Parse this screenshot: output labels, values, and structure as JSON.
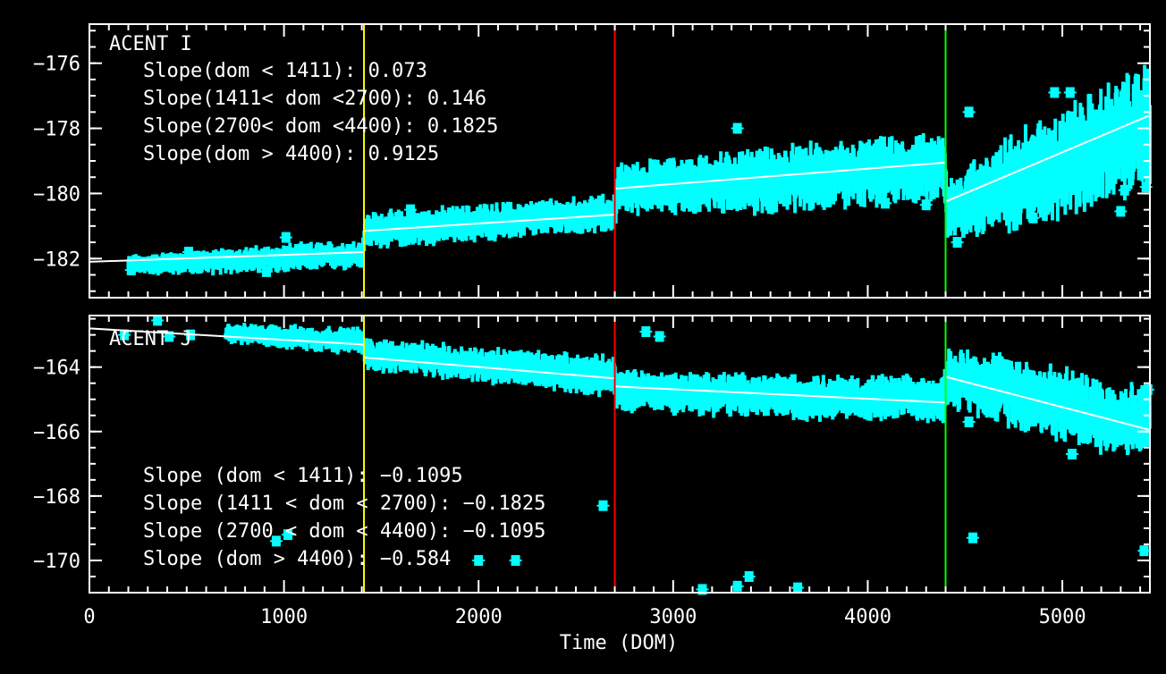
{
  "chart_data": {
    "type": "scatter",
    "xlabel": "Time (DOM)",
    "xlim": [
      0,
      5450
    ],
    "x_ticks": [
      0,
      1000,
      2000,
      3000,
      4000,
      5000
    ],
    "x_tick_labels": [
      "0",
      "1000",
      "2000",
      "3000",
      "4000",
      "5000"
    ],
    "vlines": [
      {
        "x": 1411,
        "color": "#ffff00"
      },
      {
        "x": 2700,
        "color": "#ff0000"
      },
      {
        "x": 4400,
        "color": "#00ff00"
      }
    ],
    "colors": {
      "data": "#00ffff",
      "fit": "#ffffff",
      "axes": "#ffffff",
      "background": "#000000"
    },
    "panels": [
      {
        "name": "ACENT I",
        "ylim": [
          -183.2,
          -174.8
        ],
        "y_ticks": [
          -176,
          -178,
          -180,
          -182
        ],
        "y_tick_labels": [
          "−176",
          "−178",
          "−180",
          "−182"
        ],
        "annotations": [
          "Slope(dom < 1411): 0.073",
          "Slope(1411< dom <2700): 0.146",
          "Slope(2700< dom <4400): 0.1825",
          "Slope(dom > 4400): 0.9125"
        ],
        "fit_segments": [
          {
            "x0": 0,
            "x1": 1411,
            "y0": -182.1,
            "y1": -181.8
          },
          {
            "x0": 1411,
            "x1": 2700,
            "y0": -181.15,
            "y1": -180.65
          },
          {
            "x0": 2700,
            "x1": 4400,
            "y0": -179.85,
            "y1": -179.05
          },
          {
            "x0": 4400,
            "x1": 5450,
            "y0": -180.25,
            "y1": -177.6
          }
        ],
        "band": {
          "x": [
            200,
            1000,
            1400,
            1420,
            2700,
            2710,
            3500,
            4390,
            4410,
            4800,
            5200,
            5450
          ],
          "center": [
            -182.2,
            -182.0,
            -181.85,
            -181.15,
            -180.6,
            -179.85,
            -179.6,
            -179.2,
            -180.5,
            -179.5,
            -178.6,
            -177.9
          ],
          "spread": [
            0.25,
            0.35,
            0.35,
            0.45,
            0.45,
            0.6,
            0.8,
            0.8,
            0.8,
            1.2,
            1.4,
            1.5
          ]
        },
        "outliers": [
          {
            "x": 215,
            "y": -182.35
          },
          {
            "x": 330,
            "y": -182.15
          },
          {
            "x": 420,
            "y": -182.0
          },
          {
            "x": 510,
            "y": -181.8
          },
          {
            "x": 610,
            "y": -182.05
          },
          {
            "x": 720,
            "y": -181.9
          },
          {
            "x": 910,
            "y": -182.4
          },
          {
            "x": 1010,
            "y": -181.35
          },
          {
            "x": 1650,
            "y": -180.5
          },
          {
            "x": 2000,
            "y": -180.85
          },
          {
            "x": 3330,
            "y": -178.0
          },
          {
            "x": 4090,
            "y": -180.3
          },
          {
            "x": 4300,
            "y": -180.35
          },
          {
            "x": 4460,
            "y": -181.5
          },
          {
            "x": 4520,
            "y": -177.5
          },
          {
            "x": 4850,
            "y": -180.75
          },
          {
            "x": 4960,
            "y": -176.9
          },
          {
            "x": 5040,
            "y": -176.9
          },
          {
            "x": 5300,
            "y": -180.55
          },
          {
            "x": 5320,
            "y": -179.9
          },
          {
            "x": 5430,
            "y": -179.8
          }
        ]
      },
      {
        "name": "ACENT J",
        "ylim": [
          -171.0,
          -162.4
        ],
        "y_ticks": [
          -164,
          -166,
          -168,
          -170
        ],
        "y_tick_labels": [
          "−164",
          "−166",
          "−168",
          "−170"
        ],
        "annotations": [
          "Slope (dom < 1411): −0.1095",
          "Slope (1411 < dom < 2700): −0.1825",
          "Slope (2700 < dom < 4400): −0.1095",
          "Slope (dom > 4400): −0.584"
        ],
        "fit_segments": [
          {
            "x0": 0,
            "x1": 1411,
            "y0": -162.8,
            "y1": -163.3
          },
          {
            "x0": 1411,
            "x1": 2700,
            "y0": -163.7,
            "y1": -164.35
          },
          {
            "x0": 2700,
            "x1": 4400,
            "y0": -164.6,
            "y1": -165.1
          },
          {
            "x0": 4400,
            "x1": 5450,
            "y0": -164.3,
            "y1": -165.95
          }
        ],
        "band": {
          "x": [
            700,
            1400,
            1420,
            2700,
            2710,
            3500,
            4390,
            4410,
            4800,
            5200,
            5450
          ],
          "center": [
            -162.95,
            -163.2,
            -163.6,
            -164.3,
            -164.7,
            -164.9,
            -165.0,
            -164.3,
            -164.8,
            -165.5,
            -165.7
          ],
          "spread": [
            0.25,
            0.35,
            0.4,
            0.5,
            0.5,
            0.55,
            0.55,
            0.7,
            0.9,
            0.9,
            0.9
          ]
        },
        "outliers": [
          {
            "x": 180,
            "y": -163.0
          },
          {
            "x": 350,
            "y": -162.55
          },
          {
            "x": 410,
            "y": -163.05
          },
          {
            "x": 520,
            "y": -163.0
          },
          {
            "x": 960,
            "y": -169.4
          },
          {
            "x": 1020,
            "y": -169.2
          },
          {
            "x": 2000,
            "y": -170.0
          },
          {
            "x": 2190,
            "y": -170.0
          },
          {
            "x": 2640,
            "y": -168.3
          },
          {
            "x": 2860,
            "y": -162.9
          },
          {
            "x": 2930,
            "y": -163.05
          },
          {
            "x": 3150,
            "y": -170.9
          },
          {
            "x": 3330,
            "y": -170.8
          },
          {
            "x": 3390,
            "y": -170.5
          },
          {
            "x": 3640,
            "y": -170.85
          },
          {
            "x": 4520,
            "y": -165.7
          },
          {
            "x": 4540,
            "y": -169.3
          },
          {
            "x": 5050,
            "y": -166.7
          },
          {
            "x": 5420,
            "y": -169.7
          },
          {
            "x": 5440,
            "y": -164.7
          }
        ]
      }
    ]
  }
}
